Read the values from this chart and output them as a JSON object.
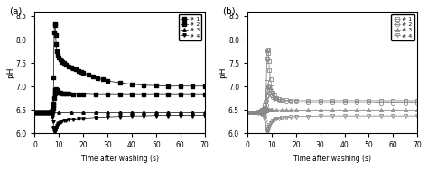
{
  "panel_a_label": "(a)",
  "panel_b_label": "(b)",
  "xlabel": "Time after washing (s)",
  "ylabel": "pH",
  "xlim": [
    0,
    70
  ],
  "ylim_a": [
    6.0,
    8.6
  ],
  "ylim_b": [
    6.0,
    8.6
  ],
  "yticks_a": [
    6.0,
    6.5,
    7.0,
    7.5,
    8.0,
    8.5
  ],
  "yticks_b": [
    6.0,
    6.5,
    7.0,
    7.5,
    8.0,
    8.5
  ],
  "xticks": [
    0,
    10,
    20,
    30,
    40,
    50,
    60,
    70
  ],
  "legend_labels": [
    "# 1",
    "# 2",
    "# 3",
    "# 4"
  ],
  "marker_a": [
    "s",
    "s",
    "^",
    "v"
  ],
  "marker_b": [
    "s",
    "o",
    "^",
    "v"
  ],
  "marker_size_a": 2.5,
  "marker_size_b": 3.0,
  "panel_a": {
    "series": [
      {
        "x": [
          0,
          0.5,
          1,
          1.5,
          2,
          2.5,
          3,
          3.5,
          4,
          4.5,
          5,
          5.5,
          6,
          6.5,
          7,
          7.2,
          7.4,
          7.6,
          7.8,
          8.0,
          8.2,
          8.4,
          8.6,
          8.8,
          9,
          9.5,
          10,
          10.5,
          11,
          11.5,
          12,
          13,
          14,
          15,
          16,
          17,
          18,
          19,
          20,
          22,
          24,
          26,
          28,
          30,
          35,
          40,
          45,
          50,
          55,
          60,
          65,
          70
        ],
        "y": [
          6.45,
          6.45,
          6.45,
          6.45,
          6.45,
          6.45,
          6.45,
          6.45,
          6.45,
          6.45,
          6.45,
          6.45,
          6.45,
          6.45,
          6.46,
          6.47,
          6.5,
          6.6,
          7.2,
          8.15,
          8.35,
          8.3,
          8.1,
          7.9,
          7.75,
          7.68,
          7.62,
          7.58,
          7.55,
          7.52,
          7.5,
          7.46,
          7.43,
          7.4,
          7.38,
          7.36,
          7.34,
          7.32,
          7.3,
          7.26,
          7.22,
          7.18,
          7.15,
          7.12,
          7.08,
          7.05,
          7.03,
          7.02,
          7.01,
          7.01,
          7.01,
          7.01
        ]
      },
      {
        "x": [
          0,
          0.5,
          1,
          1.5,
          2,
          2.5,
          3,
          3.5,
          4,
          4.5,
          5,
          5.5,
          6,
          6.5,
          7,
          7.2,
          7.4,
          7.6,
          7.8,
          8.0,
          8.2,
          8.4,
          8.6,
          8.8,
          9,
          9.5,
          10,
          10.5,
          11,
          12,
          13,
          14,
          16,
          18,
          20,
          25,
          30,
          35,
          40,
          45,
          50,
          55,
          60,
          65,
          70
        ],
        "y": [
          6.45,
          6.45,
          6.45,
          6.45,
          6.45,
          6.45,
          6.45,
          6.45,
          6.45,
          6.45,
          6.45,
          6.45,
          6.45,
          6.45,
          6.46,
          6.47,
          6.5,
          6.55,
          6.65,
          6.75,
          6.85,
          6.93,
          6.95,
          6.93,
          6.92,
          6.9,
          6.88,
          6.87,
          6.86,
          6.86,
          6.85,
          6.85,
          6.84,
          6.84,
          6.84,
          6.83,
          6.83,
          6.83,
          6.83,
          6.83,
          6.83,
          6.83,
          6.83,
          6.83,
          6.83
        ]
      },
      {
        "x": [
          0,
          5,
          10,
          15,
          20,
          25,
          30,
          35,
          40,
          45,
          50,
          55,
          60,
          65,
          70
        ],
        "y": [
          6.45,
          6.45,
          6.45,
          6.45,
          6.45,
          6.45,
          6.45,
          6.45,
          6.45,
          6.45,
          6.45,
          6.45,
          6.45,
          6.45,
          6.45
        ]
      },
      {
        "x": [
          0,
          0.5,
          1,
          1.5,
          2,
          2.5,
          3,
          3.5,
          4,
          4.5,
          5,
          5.5,
          6,
          6.5,
          7,
          7.2,
          7.4,
          7.6,
          7.8,
          8.0,
          8.2,
          8.4,
          8.6,
          8.8,
          9,
          9.5,
          10,
          10.5,
          11,
          12,
          13,
          14,
          16,
          18,
          20,
          25,
          30,
          35,
          40,
          45,
          50,
          55,
          60,
          65,
          70
        ],
        "y": [
          6.45,
          6.45,
          6.45,
          6.45,
          6.45,
          6.45,
          6.45,
          6.45,
          6.45,
          6.45,
          6.45,
          6.45,
          6.45,
          6.45,
          6.43,
          6.4,
          6.35,
          6.25,
          6.12,
          6.05,
          6.05,
          6.07,
          6.1,
          6.13,
          6.17,
          6.2,
          6.22,
          6.24,
          6.25,
          6.27,
          6.28,
          6.29,
          6.3,
          6.31,
          6.32,
          6.34,
          6.35,
          6.36,
          6.37,
          6.37,
          6.38,
          6.38,
          6.38,
          6.38,
          6.38
        ]
      }
    ]
  },
  "panel_b": {
    "series": [
      {
        "x": [
          0,
          0.5,
          1,
          1.5,
          2,
          2.5,
          3,
          3.5,
          4,
          4.5,
          5,
          5.5,
          6,
          6.5,
          7,
          7.2,
          7.4,
          7.6,
          7.8,
          8.0,
          8.2,
          8.4,
          8.6,
          8.8,
          9,
          9.5,
          10,
          10.5,
          11,
          12,
          13,
          14,
          16,
          18,
          20,
          25,
          30,
          35,
          40,
          45,
          50,
          55,
          60,
          65,
          70
        ],
        "y": [
          6.45,
          6.45,
          6.45,
          6.45,
          6.45,
          6.45,
          6.45,
          6.45,
          6.45,
          6.46,
          6.47,
          6.48,
          6.5,
          6.52,
          6.55,
          6.6,
          6.68,
          6.8,
          7.1,
          7.6,
          7.78,
          7.8,
          7.72,
          7.55,
          7.35,
          7.15,
          6.98,
          6.88,
          6.82,
          6.76,
          6.73,
          6.72,
          6.71,
          6.7,
          6.7,
          6.7,
          6.7,
          6.7,
          6.7,
          6.7,
          6.7,
          6.7,
          6.7,
          6.7,
          6.7
        ]
      },
      {
        "x": [
          0,
          0.5,
          1,
          1.5,
          2,
          2.5,
          3,
          3.5,
          4,
          4.5,
          5,
          5.5,
          6,
          6.5,
          7,
          7.2,
          7.4,
          7.6,
          7.8,
          8.0,
          8.2,
          8.4,
          8.6,
          8.8,
          9,
          9.5,
          10,
          10.5,
          11,
          12,
          13,
          14,
          16,
          18,
          20,
          25,
          30,
          35,
          40,
          45,
          50,
          55,
          60,
          65,
          70
        ],
        "y": [
          6.45,
          6.45,
          6.45,
          6.45,
          6.45,
          6.45,
          6.45,
          6.45,
          6.45,
          6.45,
          6.46,
          6.47,
          6.48,
          6.49,
          6.51,
          6.52,
          6.55,
          6.6,
          6.7,
          6.82,
          6.92,
          6.98,
          7.0,
          6.98,
          6.94,
          6.88,
          6.82,
          6.78,
          6.75,
          6.72,
          6.7,
          6.69,
          6.68,
          6.67,
          6.67,
          6.66,
          6.66,
          6.66,
          6.66,
          6.66,
          6.66,
          6.65,
          6.65,
          6.65,
          6.65
        ]
      },
      {
        "x": [
          0,
          0.5,
          1,
          1.5,
          2,
          2.5,
          3,
          3.5,
          4,
          4.5,
          5,
          5.5,
          6,
          6.5,
          7,
          7.2,
          7.4,
          7.6,
          7.8,
          8.0,
          8.2,
          8.4,
          8.6,
          8.8,
          9,
          9.5,
          10,
          12,
          14,
          16,
          18,
          20,
          25,
          30,
          35,
          40,
          45,
          50,
          55,
          60,
          65,
          70
        ],
        "y": [
          6.45,
          6.45,
          6.45,
          6.45,
          6.45,
          6.45,
          6.45,
          6.45,
          6.45,
          6.45,
          6.45,
          6.45,
          6.45,
          6.45,
          6.46,
          6.47,
          6.48,
          6.49,
          6.5,
          6.5,
          6.5,
          6.5,
          6.5,
          6.5,
          6.5,
          6.5,
          6.5,
          6.5,
          6.5,
          6.5,
          6.5,
          6.5,
          6.5,
          6.5,
          6.5,
          6.5,
          6.5,
          6.5,
          6.5,
          6.5,
          6.5,
          6.5
        ]
      },
      {
        "x": [
          0,
          0.5,
          1,
          1.5,
          2,
          2.5,
          3,
          3.5,
          4,
          4.5,
          5,
          5.5,
          6,
          6.5,
          7,
          7.2,
          7.4,
          7.6,
          7.8,
          8.0,
          8.2,
          8.4,
          8.6,
          8.8,
          9,
          9.5,
          10,
          10.5,
          11,
          12,
          13,
          14,
          16,
          18,
          20,
          25,
          30,
          35,
          40,
          45,
          50,
          55,
          60,
          65,
          70
        ],
        "y": [
          6.45,
          6.45,
          6.45,
          6.45,
          6.45,
          6.45,
          6.45,
          6.45,
          6.45,
          6.44,
          6.43,
          6.42,
          6.41,
          6.39,
          6.36,
          6.32,
          6.25,
          6.15,
          6.07,
          6.05,
          6.05,
          6.07,
          6.1,
          6.14,
          6.18,
          6.22,
          6.25,
          6.27,
          6.29,
          6.31,
          6.32,
          6.33,
          6.34,
          6.35,
          6.36,
          6.36,
          6.37,
          6.37,
          6.37,
          6.37,
          6.37,
          6.37,
          6.37,
          6.37,
          6.37
        ]
      }
    ]
  }
}
